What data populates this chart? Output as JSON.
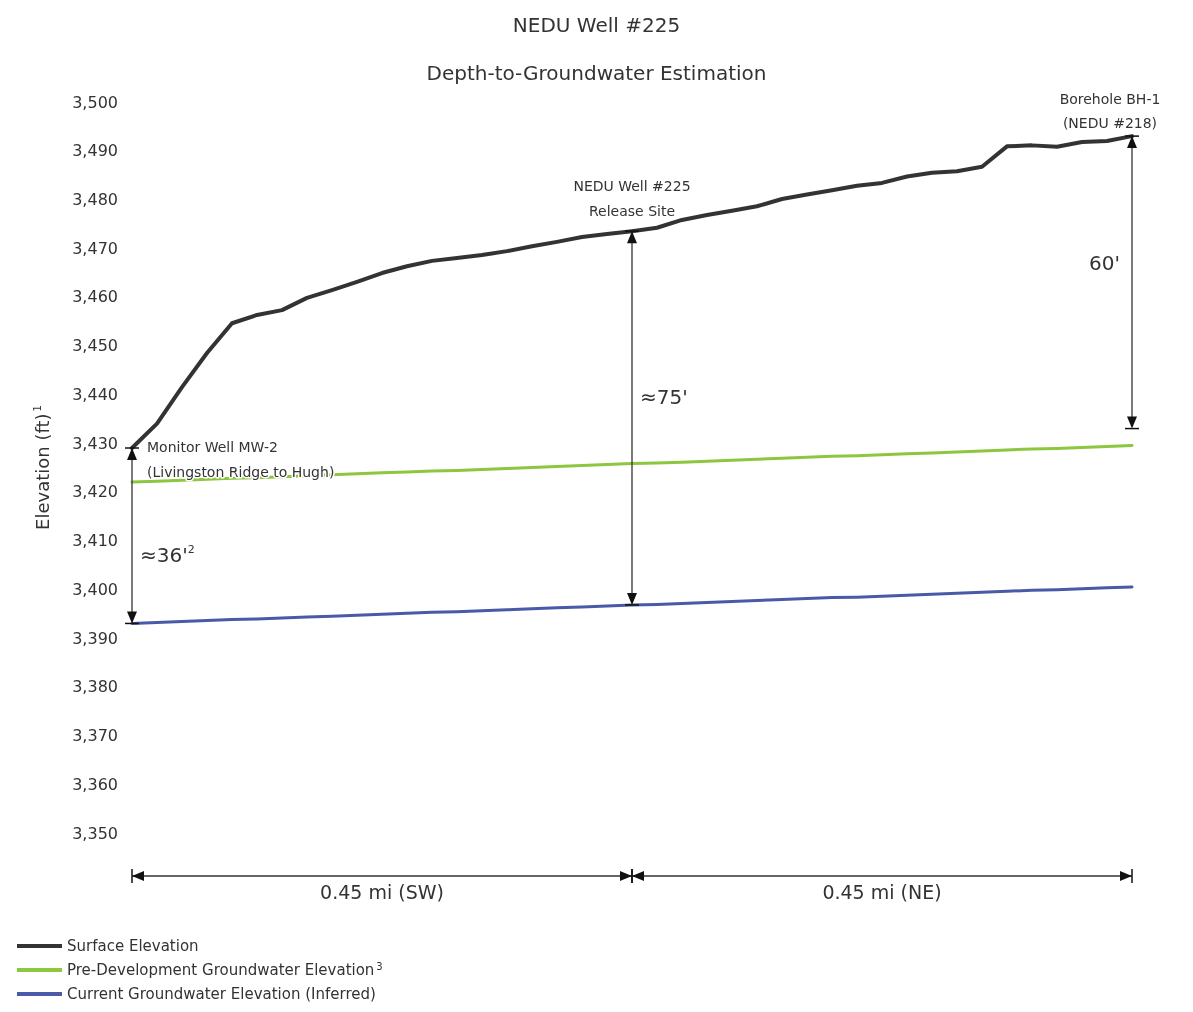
{
  "chart_data": {
    "type": "line",
    "title": "NEDU Well #225",
    "subtitle": "Depth-to-Groundwater Estimation",
    "ylabel": "Elevation (ft)$^{1}$",
    "categories": [
      null,
      null,
      null,
      null,
      null,
      null,
      null,
      null,
      null,
      null,
      null,
      null,
      null,
      null,
      null,
      null,
      null,
      null,
      null,
      null,
      null,
      null,
      null,
      null,
      null,
      null,
      null,
      null,
      null,
      null,
      null,
      null,
      null,
      null,
      null,
      null,
      null,
      null,
      null,
      null,
      null
    ],
    "ylim": [
      3350,
      3500
    ],
    "yticks": [
      {
        "value": 3350,
        "label": "3,350"
      },
      {
        "value": 3360,
        "label": "3,360"
      },
      {
        "value": 3370,
        "label": "3,370"
      },
      {
        "value": 3380,
        "label": "3,380"
      },
      {
        "value": 3390,
        "label": "3,390"
      },
      {
        "value": 3400,
        "label": "3,400"
      },
      {
        "value": 3410,
        "label": "3,410"
      },
      {
        "value": 3420,
        "label": "3,420"
      },
      {
        "value": 3430,
        "label": "3,430"
      },
      {
        "value": 3440,
        "label": "3,440"
      },
      {
        "value": 3450,
        "label": "3,450"
      },
      {
        "value": 3460,
        "label": "3,460"
      },
      {
        "value": 3470,
        "label": "3,470"
      },
      {
        "value": 3480,
        "label": "3,480"
      },
      {
        "value": 3490,
        "label": "3,490"
      },
      {
        "value": 3500,
        "label": "3,500"
      }
    ],
    "tick_labels": "y",
    "grid": false,
    "legend": "bottom left",
    "marker": "none",
    "line_style": "solid",
    "series": [
      {
        "name": "Surface Elevation",
        "color": "#333333",
        "values": [
          3429,
          3434,
          3441.5,
          3448.5,
          3454.6,
          3456.3,
          3457.3,
          3459.8,
          3461.4,
          3463.1,
          3464.9,
          3466.3,
          3467.4,
          3468,
          3468.6,
          3469.4,
          3470.4,
          3471.3,
          3472.3,
          3472.9,
          3473.5,
          3474.2,
          3475.8,
          3476.8,
          3477.7,
          3478.6,
          3480.1,
          3481,
          3481.9,
          3482.8,
          3483.4,
          3484.7,
          3485.5,
          3485.8,
          3486.7,
          3490.9,
          3491.1,
          3490.8,
          3491.8,
          3492,
          3493
        ]
      },
      {
        "name": "Pre-Development Groundwater Elevation$^{3}$",
        "color": "#8dc63f",
        "values": [
          3422,
          3422.2,
          3422.4,
          3422.6,
          3422.8,
          3422.9,
          3423.1,
          3423.3,
          3423.5,
          3423.7,
          3423.9,
          3424.1,
          3424.3,
          3424.4,
          3424.6,
          3424.8,
          3425,
          3425.2,
          3425.4,
          3425.6,
          3425.8,
          3425.9,
          3426.1,
          3426.3,
          3426.5,
          3426.7,
          3426.9,
          3427.1,
          3427.3,
          3427.4,
          3427.6,
          3427.8,
          3428,
          3428.2,
          3428.4,
          3428.6,
          3428.8,
          3428.9,
          3429.1,
          3429.3,
          3429.5
        ]
      },
      {
        "name": "Current Groundwater Elevation (Inferred)",
        "color": "#4a5aa8",
        "values": [
          3393,
          3393.2,
          3393.4,
          3393.6,
          3393.8,
          3393.9,
          3394.1,
          3394.3,
          3394.5,
          3394.7,
          3394.9,
          3395.1,
          3395.3,
          3395.4,
          3395.6,
          3395.8,
          3396,
          3396.2,
          3396.4,
          3396.6,
          3396.8,
          3396.9,
          3397.1,
          3397.3,
          3397.5,
          3397.7,
          3397.9,
          3398.1,
          3398.3,
          3398.4,
          3398.6,
          3398.8,
          3399,
          3399.2,
          3399.4,
          3399.6,
          3399.8,
          3399.9,
          3400.1,
          3400.3,
          3400.5
        ]
      }
    ],
    "annotations": [
      "Monitor Well MW-2\n(Livingston Ridge to Hugh)",
      "NEDU Well #225\nRelease Site",
      "Borehole BH-1\n(NEDU #218)",
      "≈36'$^{2}$",
      "≈75'",
      "60'",
      "0.45 mi (SW)",
      "0.45 mi (NE)"
    ]
  }
}
